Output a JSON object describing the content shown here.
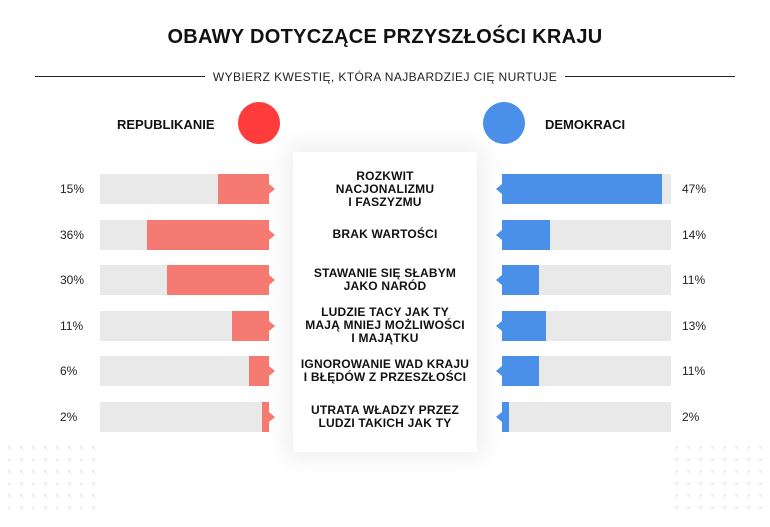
{
  "title": "OBAWY DOTYCZĄCE PRZYSZŁOŚCI KRAJU",
  "subtitle": "WYBIERZ KWESTIĘ, KTÓRA NAJBARDZIEJ CIĘ NURTUJE",
  "colors": {
    "republicans": "#f47a72",
    "republicans_dot": "#ff3b3b",
    "democrats": "#4a90e8",
    "democrats_dot": "#4a90e8",
    "track": "#e9e9e9"
  },
  "chart_data": {
    "type": "bar",
    "title": "OBAWY DOTYCZĄCE PRZYSZŁOŚCI KRAJU",
    "subtitle": "WYBIERZ KWESTIĘ, KTÓRA NAJBARDZIEJ CIĘ NURTUJE",
    "xlim": [
      0,
      50
    ],
    "categories": [
      [
        "ROZKWIT",
        "NACJONALIZMU",
        "I FASZYZMU"
      ],
      [
        "BRAK WARTOŚCI"
      ],
      [
        "STAWANIE SIĘ SŁABYM",
        "JAKO NARÓD"
      ],
      [
        "LUDZIE TACY JAK TY",
        "MAJĄ MNIEJ MOŻLIWOŚCI",
        "I MAJĄTKU"
      ],
      [
        "IGNOROWANIE WAD KRAJU",
        "I BŁĘDÓW Z PRZESZŁOŚCI"
      ],
      [
        "UTRATA WŁADZY PRZEZ",
        "LUDZI TAKICH JAK TY"
      ]
    ],
    "series": [
      {
        "name": "REPUBLIKANIE",
        "values": [
          15,
          36,
          30,
          11,
          6,
          2
        ],
        "labels": [
          "15%",
          "36%",
          "30%",
          "11%",
          "6%",
          "2%"
        ]
      },
      {
        "name": "DEMOKRACI",
        "values": [
          47,
          14,
          11,
          13,
          11,
          2
        ],
        "labels": [
          "47%",
          "14%",
          "11%",
          "13%",
          "11%",
          "2%"
        ]
      }
    ]
  }
}
